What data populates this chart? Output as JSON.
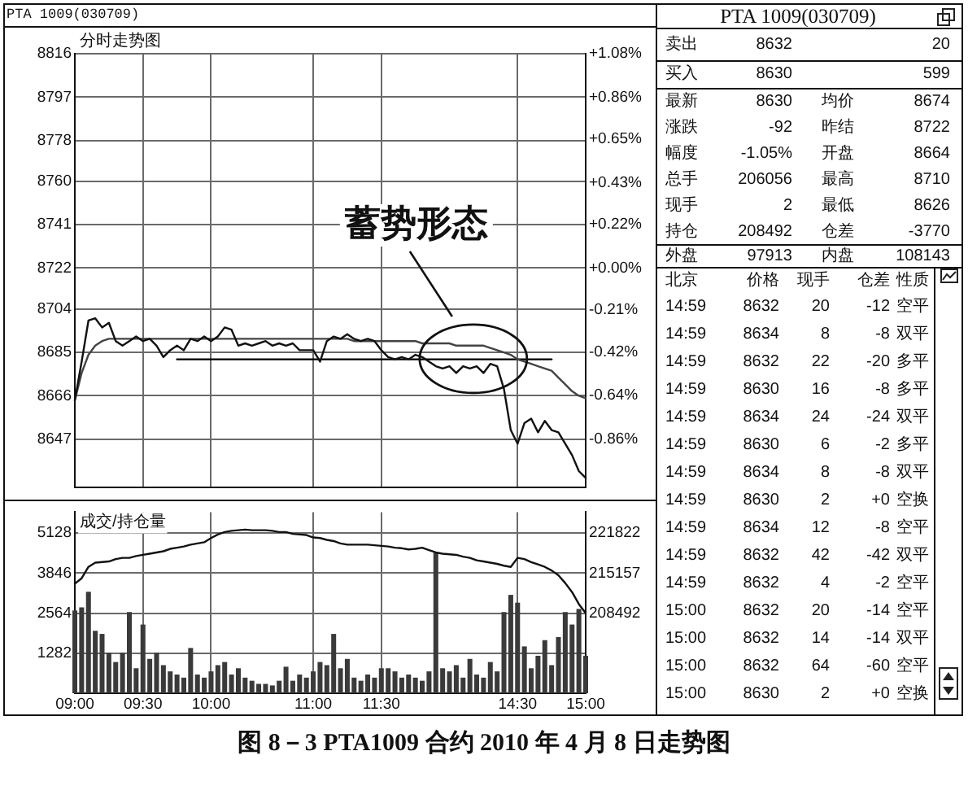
{
  "chart_data": [
    {
      "type": "line",
      "title": "PTA 1009(030709)",
      "subtitle": "分时走势图",
      "categories": [
        null,
        null,
        null,
        null,
        null,
        null,
        null,
        null,
        null,
        null,
        null,
        null,
        null,
        null,
        null,
        null,
        null,
        null,
        null,
        null,
        null,
        null,
        null,
        null,
        null,
        null,
        null,
        null,
        null,
        null,
        null,
        null,
        null,
        null,
        null,
        null,
        null,
        null,
        null,
        null,
        null,
        null,
        null,
        null,
        null,
        null,
        null,
        null,
        null,
        null,
        null,
        null,
        null,
        null,
        null,
        null,
        null,
        null,
        null,
        null,
        null,
        null,
        null,
        null,
        null,
        null,
        null,
        null,
        null,
        null,
        null,
        null,
        null,
        null,
        null,
        null
      ],
      "series": [
        {
          "color": "#111111",
          "values": [
            8664,
            8681,
            8699,
            8700,
            8696,
            8698,
            8690,
            8688,
            8690,
            8692,
            8690,
            8691,
            8688,
            8683,
            8686,
            8688,
            8686,
            8691,
            8690,
            8692,
            8690,
            8692,
            8696,
            8695,
            8688,
            8689,
            8688,
            8689,
            8690,
            8688,
            8689,
            8688,
            8689,
            8686,
            8686,
            8686,
            8681,
            8690,
            8692,
            8691,
            8693,
            8691,
            8690,
            8691,
            8690,
            8686,
            8683,
            8682,
            8683,
            8682,
            8684,
            8683,
            8681,
            8679,
            8678,
            8679,
            8676,
            8679,
            8678,
            8679,
            8676,
            8680,
            8679,
            8669,
            8651,
            8645,
            8654,
            8656,
            8650,
            8655,
            8651,
            8650,
            8645,
            8640,
            8633,
            8630
          ]
        },
        {
          "color": "#444444",
          "values": [
            8664,
            8676,
            8684,
            8688,
            8690,
            8691,
            8691,
            8691,
            8691,
            8691,
            8691,
            8691,
            8691,
            8691,
            8691,
            8691,
            8691,
            8691,
            8691,
            8691,
            8691,
            8691,
            8691,
            8691,
            8691,
            8691,
            8691,
            8691,
            8691,
            8691,
            8691,
            8691,
            8691,
            8691,
            8691,
            8691,
            8691,
            8691,
            8691,
            8691,
            8691,
            8690,
            8690,
            8690,
            8690,
            8690,
            8690,
            8690,
            8690,
            8690,
            8690,
            8689,
            8689,
            8689,
            8689,
            8689,
            8688,
            8688,
            8688,
            8688,
            8688,
            8687,
            8686,
            8685,
            8684,
            8682,
            8681,
            8680,
            8679,
            8678,
            8677,
            8674,
            8671,
            8668,
            8666,
            8665
          ]
        },
        {
          "color": "#000000",
          "values": [
            null,
            null,
            null,
            null,
            null,
            null,
            null,
            null,
            null,
            null,
            null,
            null,
            null,
            null,
            null,
            8682,
            8682,
            8682,
            8682,
            8682,
            8682,
            8682,
            8682,
            8682,
            8682,
            8682,
            8682,
            8682,
            8682,
            8682,
            8682,
            8682,
            8682,
            8682,
            8682,
            8682,
            8682,
            8682,
            8682,
            8682,
            8682,
            8682,
            8682,
            8682,
            8682,
            8682,
            8682,
            8682,
            8682,
            8682,
            8682,
            8682,
            8682,
            8682,
            8682,
            8682,
            8682,
            8682,
            8682,
            8682,
            8682,
            8682,
            8682,
            8682,
            8682,
            8682,
            8682,
            8682,
            8682,
            8682,
            8682,
            null,
            null,
            null,
            null,
            null
          ]
        }
      ],
      "ylim": [
        8626,
        8816
      ],
      "yticks": [
        8816,
        8797,
        8778,
        8760,
        8741,
        8722,
        8704,
        8685,
        8666,
        8647
      ],
      "y2lim": [
        -1.1,
        1.08
      ],
      "y2ticks": [
        {
          "value": 1.08,
          "label": "+1.08%"
        },
        {
          "value": 0.86,
          "label": "+0.86%"
        },
        {
          "value": 0.65,
          "label": "+0.65%"
        },
        {
          "value": 0.43,
          "label": "+0.43%"
        },
        {
          "value": 0.22,
          "label": "+0.22%"
        },
        {
          "value": 0,
          "label": "+0.00%"
        },
        {
          "value": -0.21,
          "label": "-0.21%"
        },
        {
          "value": -0.42,
          "label": "-0.42%"
        },
        {
          "value": -0.64,
          "label": "-0.64%"
        },
        {
          "value": -0.86,
          "label": "-0.86%"
        }
      ],
      "grid": true,
      "tick_labels": "y",
      "annotations": [
        "蓄势形态",
        "图 8－3 PTA1009 合约 2010 年 4 月 8 日走势图"
      ]
    },
    {
      "type": "bar",
      "title": "成交/持仓量",
      "categories": [
        "09:00",
        null,
        null,
        null,
        null,
        null,
        null,
        null,
        null,
        null,
        "09:30",
        null,
        null,
        null,
        null,
        null,
        null,
        null,
        null,
        null,
        "10:00",
        null,
        null,
        null,
        null,
        null,
        null,
        null,
        null,
        null,
        null,
        null,
        null,
        null,
        null,
        "11:00",
        null,
        null,
        null,
        null,
        null,
        null,
        null,
        null,
        null,
        "11:30",
        null,
        null,
        null,
        null,
        null,
        null,
        null,
        null,
        null,
        null,
        null,
        null,
        null,
        null,
        null,
        null,
        null,
        null,
        null,
        "14:30",
        null,
        null,
        null,
        null,
        null,
        null,
        null,
        null,
        null,
        "15:00"
      ],
      "series": [
        {
          "type": "bar",
          "color": "#3a3a3a",
          "values": [
            2650,
            2750,
            3250,
            2000,
            1900,
            1300,
            1000,
            1300,
            2600,
            800,
            2200,
            1100,
            1300,
            900,
            700,
            600,
            500,
            1450,
            600,
            500,
            700,
            900,
            1000,
            600,
            800,
            500,
            400,
            300,
            300,
            250,
            400,
            850,
            400,
            600,
            500,
            700,
            1000,
            900,
            1900,
            800,
            1100,
            500,
            400,
            600,
            500,
            800,
            800,
            700,
            500,
            600,
            500,
            400,
            700,
            4500,
            800,
            700,
            900,
            500,
            1100,
            600,
            500,
            1000,
            700,
            2600,
            3150,
            2900,
            1500,
            800,
            1200,
            1700,
            900,
            1800,
            2600,
            2200,
            2700,
            1200
          ]
        },
        {
          "type": "line",
          "color": "#111111",
          "axis": "y2",
          "values": [
            213400,
            214300,
            216200,
            216900,
            217000,
            217100,
            217500,
            217700,
            217700,
            218000,
            218200,
            218400,
            218600,
            218800,
            219200,
            219400,
            219600,
            219900,
            220100,
            220300,
            221000,
            221600,
            222000,
            222200,
            222300,
            222400,
            222300,
            222300,
            222300,
            222200,
            222000,
            222000,
            221700,
            221600,
            221500,
            221100,
            221000,
            220700,
            220500,
            220100,
            219900,
            219900,
            219900,
            219900,
            219800,
            219700,
            219600,
            219400,
            219300,
            219100,
            219200,
            219400,
            219000,
            218600,
            218400,
            218300,
            218200,
            217900,
            217700,
            217300,
            217100,
            216900,
            216700,
            216400,
            216200,
            217700,
            217500,
            217000,
            216600,
            216200,
            215600,
            214800,
            213500,
            212000,
            210000,
            208500
          ]
        }
      ],
      "ylim": [
        0,
        5800
      ],
      "yticks": [
        1282,
        2564,
        3846,
        5128
      ],
      "y2lim": [
        195162,
        225316
      ],
      "y2ticks": [
        208492,
        215157,
        221822
      ],
      "grid": true
    },
    {
      "type": "other",
      "title": "PTA 1009(030709)",
      "annotations": [
        "卖出",
        "8632",
        "20",
        "买入",
        "8630",
        "599",
        "最新",
        "8630",
        "均价",
        "8674",
        "涨跌",
        "-92",
        "昨结",
        "8722",
        "幅度",
        "-1.05%",
        "开盘",
        "8664",
        "总手",
        "206056",
        "最高",
        "8710",
        "现手",
        "2",
        "最低",
        "8626",
        "持仓",
        "208492",
        "仓差",
        "-3770",
        "外盘",
        "97913",
        "内盘",
        "108143",
        "北京",
        "价格",
        "现手",
        "仓差",
        "性质",
        "14:59",
        "8632",
        "20",
        "-12",
        "空平",
        "14:59",
        "8634",
        "8",
        "-8",
        "双平",
        "14:59",
        "8632",
        "22",
        "-20",
        "多平",
        "14:59",
        "8630",
        "16",
        "-8",
        "多平",
        "14:59",
        "8634",
        "24",
        "-24",
        "双平",
        "14:59",
        "8630",
        "6",
        "-2",
        "多平",
        "14:59",
        "8634",
        "8",
        "-8",
        "双平",
        "14:59",
        "8630",
        "2",
        "+0",
        "空换",
        "14:59",
        "8634",
        "12",
        "-8",
        "空平",
        "14:59",
        "8632",
        "42",
        "-42",
        "双平",
        "14:59",
        "8632",
        "4",
        "-2",
        "空平",
        "15:00",
        "8632",
        "20",
        "-14",
        "空平",
        "15:00",
        "8632",
        "14",
        "-14",
        "双平",
        "15:00",
        "8632",
        "64",
        "-60",
        "空平",
        "15:00",
        "8630",
        "2",
        "+0",
        "空换"
      ]
    }
  ]
}
